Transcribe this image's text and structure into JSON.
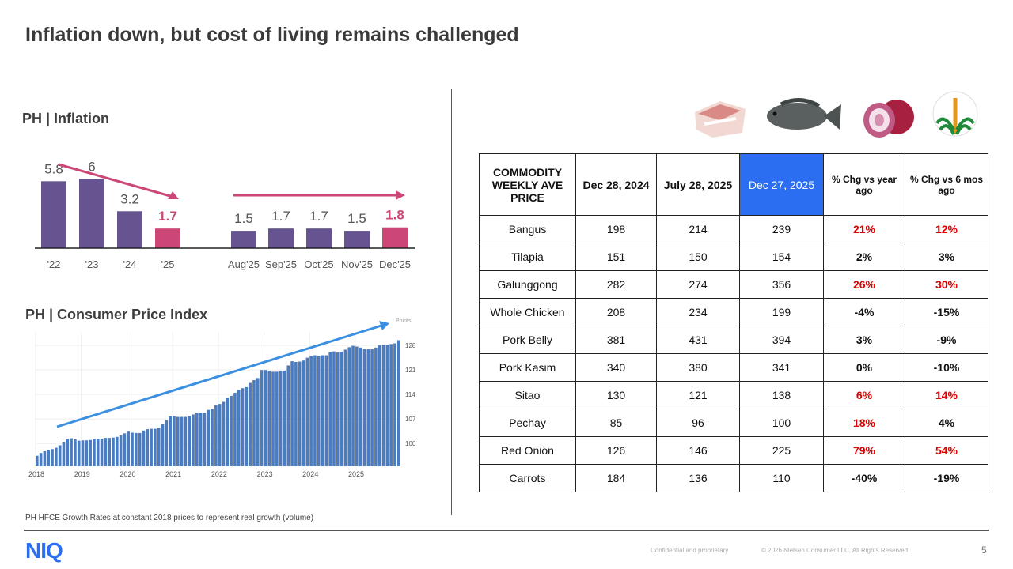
{
  "title": "Inflation down, but cost of living remains challenged",
  "inflation": {
    "heading": "PH | Inflation"
  },
  "cpi": {
    "heading": "PH | Consumer Price Index",
    "unit_label": "Points"
  },
  "footnote": "PH HFCE Growth Rates at constant 2018 prices to represent real growth (volume)",
  "footer": {
    "logo": "NIQ",
    "confidential": "Confidential and proprietary",
    "copyright": "© 2026 Nielsen Consumer LLC. All Rights Reserved.",
    "page": "5"
  },
  "images": [
    "pork-belly",
    "tilapia-fish",
    "red-onion",
    "department-of-agriculture-seal"
  ],
  "colors": {
    "bar": "#65548f",
    "highlight": "#cc4677",
    "cpi_bar": "#4a7cc1",
    "arrow": "#3b8fe0",
    "header_hl": "#2b6ef2",
    "increase": "#e00000"
  },
  "chart_data": [
    {
      "type": "bar",
      "title": "PH | Inflation",
      "categories": [
        "'22",
        "'23",
        "'24",
        "'25",
        "Aug'25",
        "Sep'25",
        "Oct'25",
        "Nov'25",
        "Dec'25"
      ],
      "values": [
        5.8,
        6.0,
        3.2,
        1.7,
        1.5,
        1.7,
        1.7,
        1.5,
        1.8
      ],
      "highlighted": [
        "'25",
        "Dec'25"
      ],
      "ylim": [
        0,
        6.5
      ],
      "grid": false,
      "annotations": [
        "downward trend arrow '22-'25",
        "flat trend arrow Aug'25-Dec'25"
      ]
    },
    {
      "type": "bar",
      "title": "PH | Consumer Price Index",
      "ylabel": "Points",
      "xticks": [
        "2018",
        "2019",
        "2020",
        "2021",
        "2022",
        "2023",
        "2024",
        "2025"
      ],
      "yticks": [
        100,
        107,
        114,
        121,
        128
      ],
      "ylim": [
        93.5,
        133
      ],
      "grid": true,
      "axis_side": "right",
      "values": [
        96.5,
        97.3,
        97.8,
        98.1,
        98.4,
        98.8,
        99.5,
        100.5,
        101.3,
        101.5,
        101.2,
        100.8,
        100.9,
        100.9,
        101.0,
        101.3,
        101.4,
        101.3,
        101.6,
        101.6,
        101.7,
        101.9,
        102.3,
        102.9,
        103.4,
        103.1,
        103.0,
        103.0,
        103.7,
        104.1,
        104.2,
        104.2,
        104.5,
        105.5,
        106.6,
        107.8,
        107.9,
        107.6,
        107.6,
        107.6,
        107.8,
        108.3,
        108.8,
        108.8,
        108.8,
        109.6,
        109.9,
        111.0,
        111.3,
        111.9,
        113.0,
        113.6,
        114.5,
        115.3,
        115.8,
        116.1,
        117.3,
        118.1,
        118.7,
        121.0,
        121.0,
        120.8,
        120.5,
        120.5,
        120.8,
        120.8,
        122.3,
        123.5,
        123.3,
        123.4,
        123.7,
        124.5,
        125.0,
        125.2,
        125.1,
        125.2,
        125.2,
        126.1,
        126.3,
        126.0,
        126.2,
        126.8,
        127.5,
        127.9,
        127.7,
        127.4,
        127.0,
        126.9,
        126.9,
        127.4,
        128.1,
        128.2,
        128.2,
        128.4,
        128.6,
        129.5
      ],
      "annotations": [
        "upward trend arrow"
      ]
    }
  ],
  "table": {
    "headers": [
      "COMMODITY WEEKLY AVE PRICE",
      "Dec 28, 2024",
      "July 28, 2025",
      "Dec 27, 2025",
      "% Chg vs year ago",
      "% Chg vs 6 mos ago"
    ],
    "rows": [
      [
        "Bangus",
        "198",
        "214",
        "239",
        "21%",
        "12%"
      ],
      [
        "Tilapia",
        "151",
        "150",
        "154",
        "2%",
        "3%"
      ],
      [
        "Galunggong",
        "282",
        "274",
        "356",
        "26%",
        "30%"
      ],
      [
        "Whole Chicken",
        "208",
        "234",
        "199",
        "-4%",
        "-15%"
      ],
      [
        "Pork Belly",
        "381",
        "431",
        "394",
        "3%",
        "-9%"
      ],
      [
        "Pork Kasim",
        "340",
        "380",
        "341",
        "0%",
        "-10%"
      ],
      [
        "Sitao",
        "130",
        "121",
        "138",
        "6%",
        "14%"
      ],
      [
        "Pechay",
        "85",
        "96",
        "100",
        "18%",
        "4%"
      ],
      [
        "Red Onion",
        "126",
        "146",
        "225",
        "79%",
        "54%"
      ],
      [
        "Carrots",
        "184",
        "136",
        "110",
        "-40%",
        "-19%"
      ]
    ],
    "red_cells": [
      [
        0,
        4
      ],
      [
        0,
        5
      ],
      [
        2,
        4
      ],
      [
        2,
        5
      ],
      [
        6,
        4
      ],
      [
        6,
        5
      ],
      [
        7,
        4
      ],
      [
        8,
        4
      ],
      [
        8,
        5
      ]
    ]
  }
}
